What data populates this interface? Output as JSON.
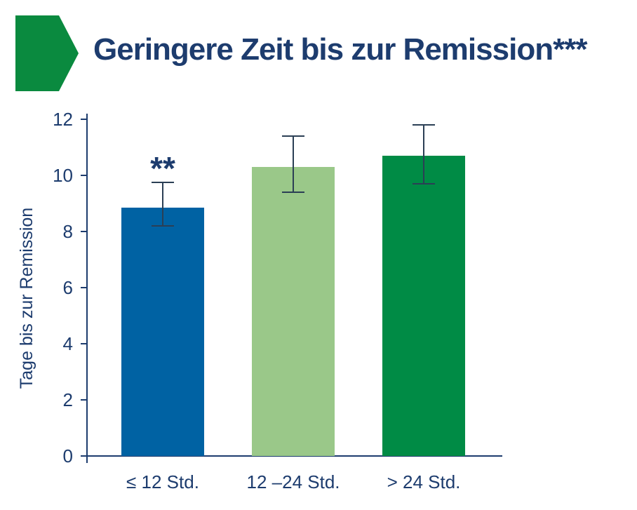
{
  "title": "Geringere Zeit bis zur Remission***",
  "colors": {
    "header_chevron": "#0a8a3f",
    "text": "#1d3c6e",
    "axis": "#1d3c6e",
    "error_bar": "#2b3f55"
  },
  "chart_data": {
    "type": "bar",
    "title": "Geringere Zeit bis zur Remission***",
    "xlabel": "",
    "ylabel": "Tage bis zur Remission",
    "categories": [
      "≤ 12 Std.",
      "12 –24 Std.",
      "> 24 Std."
    ],
    "values": [
      8.85,
      10.3,
      10.7
    ],
    "error_low": [
      8.2,
      9.4,
      9.7
    ],
    "error_high": [
      9.75,
      11.4,
      11.8
    ],
    "bar_colors": [
      "#0062a3",
      "#9ac889",
      "#008b45"
    ],
    "annotations": [
      "**",
      "",
      ""
    ],
    "ylim": [
      0,
      12
    ],
    "yticks": [
      0,
      2,
      4,
      6,
      8,
      10,
      12
    ],
    "grid": false,
    "legend": "none"
  }
}
